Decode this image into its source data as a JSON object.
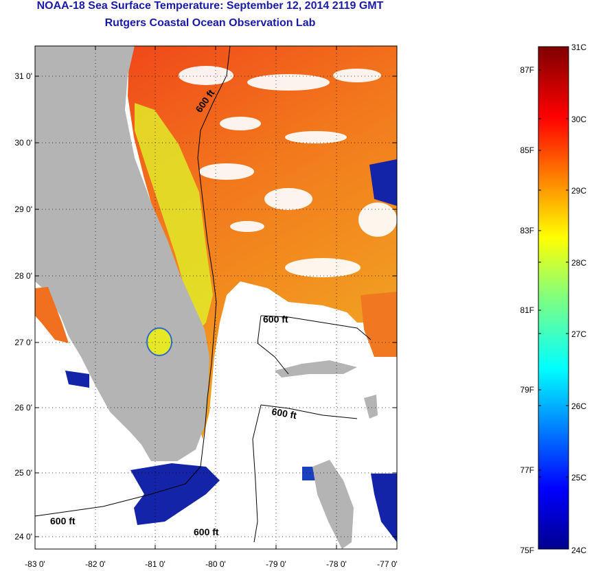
{
  "header": {
    "title": "NOAA-18 Sea Surface Temperature:  September 12, 2014 2119 GMT",
    "subtitle": "Rutgers Coastal Ocean Observation Lab"
  },
  "map": {
    "lat_ticks": [
      "31 0'",
      "30 0'",
      "29 0'",
      "28 0'",
      "27 0'",
      "26 0'",
      "25 0'",
      "24 0'"
    ],
    "lon_ticks": [
      "-83 0'",
      "-82 0'",
      "-81 0'",
      "-80 0'",
      "-79 0'",
      "-78 0'",
      "-77 0'"
    ],
    "isobath_labels": [
      "600 ft",
      "600 ft",
      "600 ft",
      "600 ft",
      "600 ft"
    ],
    "colors": {
      "land": "#b4b4b4",
      "ocean_warm": "#f06a1a",
      "ocean_yellow": "#e8ee24",
      "cold": "#1020a0",
      "cloud": "#ffffff"
    }
  },
  "colorbar": {
    "celsius_labels": [
      "31C",
      "30C",
      "29C",
      "28C",
      "27C",
      "26C",
      "25C",
      "24C"
    ],
    "fahrenheit_labels": [
      "87F",
      "85F",
      "83F",
      "81F",
      "79F",
      "77F",
      "75F"
    ],
    "range_c": [
      24,
      31
    ]
  }
}
